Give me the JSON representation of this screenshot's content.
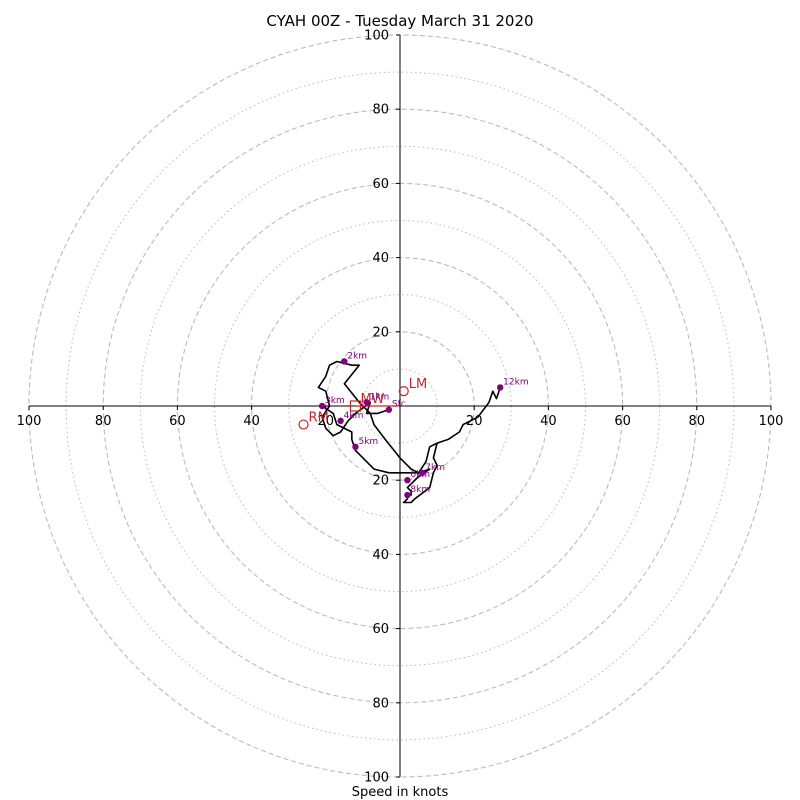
{
  "chart_data": {
    "type": "line",
    "title": "CYAH 00Z - Tuesday March 31 2020",
    "xlabel": "Speed in knots",
    "ylabel": "",
    "xlim": [
      -100,
      100
    ],
    "ylim": [
      -100,
      100
    ],
    "dashed_rings": [
      20,
      40,
      60,
      80,
      100
    ],
    "dotted_rings": [
      10,
      30,
      50,
      70,
      90
    ],
    "x_ticks": [
      {
        "value": -100,
        "label": "100"
      },
      {
        "value": -80,
        "label": "80"
      },
      {
        "value": -60,
        "label": "60"
      },
      {
        "value": -40,
        "label": "40"
      },
      {
        "value": -20,
        "label": "20"
      },
      {
        "value": 20,
        "label": "20"
      },
      {
        "value": 40,
        "label": "40"
      },
      {
        "value": 60,
        "label": "60"
      },
      {
        "value": 80,
        "label": "80"
      },
      {
        "value": 100,
        "label": "100"
      }
    ],
    "y_ticks": [
      {
        "value": 100,
        "label": "100"
      },
      {
        "value": 80,
        "label": "80"
      },
      {
        "value": 60,
        "label": "60"
      },
      {
        "value": 40,
        "label": "40"
      },
      {
        "value": 20,
        "label": "20"
      },
      {
        "value": -20,
        "label": "20"
      },
      {
        "value": -40,
        "label": "40"
      },
      {
        "value": -60,
        "label": "60"
      },
      {
        "value": -80,
        "label": "80"
      },
      {
        "value": -100,
        "label": "100"
      }
    ],
    "series": [
      {
        "color": "#000000",
        "x": [
          -3,
          -6,
          -9,
          -8,
          -12,
          -14,
          -16,
          -18,
          -20,
          -21,
          -19,
          -20,
          -22,
          -20,
          -19,
          -17,
          -13,
          -11,
          -15,
          -11,
          -8,
          -7,
          -4,
          0,
          3,
          5,
          7,
          8,
          10,
          13,
          16,
          17,
          19,
          21,
          24,
          25,
          26,
          27
        ],
        "y": [
          -1,
          -2,
          -2,
          1,
          -2,
          -4,
          -7,
          -8,
          -6,
          -3,
          0,
          4,
          5,
          8,
          11,
          12,
          11,
          11,
          6,
          1,
          -2,
          -5,
          -9,
          -14,
          -17,
          -18,
          -15,
          -11,
          -10,
          -9,
          -7,
          -5,
          -4,
          -3,
          1,
          4,
          2,
          5
        ]
      },
      {
        "color": "#000000",
        "x": [
          -21,
          -18,
          -17,
          -13,
          -13,
          -12,
          -11,
          -7,
          -3,
          0,
          5,
          8,
          5,
          3,
          2,
          3,
          3,
          2,
          2,
          1,
          3,
          4,
          8,
          9,
          10,
          9,
          10
        ],
        "y": [
          0,
          -2,
          -5,
          -7,
          -9,
          -12,
          -13,
          -17,
          -18,
          -18,
          -18,
          -17,
          -19,
          -21,
          -22,
          -23,
          -24,
          -24,
          -25,
          -26,
          -26,
          -25,
          -22,
          -18,
          -16,
          -14,
          -10
        ]
      }
    ],
    "height_markers": [
      {
        "label": "Sfc",
        "x": -3,
        "y": -1
      },
      {
        "label": "1km",
        "x": -9,
        "y": 1
      },
      {
        "label": "2km",
        "x": -15,
        "y": 12
      },
      {
        "label": "3km",
        "x": -21,
        "y": 0
      },
      {
        "label": "4km",
        "x": -16,
        "y": -4
      },
      {
        "label": "5km",
        "x": -12,
        "y": -11
      },
      {
        "label": "7km",
        "x": 6,
        "y": -18
      },
      {
        "label": "6km",
        "x": 2,
        "y": -20
      },
      {
        "label": "8km",
        "x": 2,
        "y": -24
      },
      {
        "label": "12km",
        "x": 27,
        "y": 5
      }
    ],
    "storm_motion": [
      {
        "label": "LM",
        "x": 1,
        "y": 4,
        "marker": "circle"
      },
      {
        "label": "RM",
        "x": -26,
        "y": -5,
        "marker": "circle"
      },
      {
        "label": "MW",
        "x": -12,
        "y": 0,
        "marker": "square"
      }
    ],
    "colors": {
      "marker": "#800080",
      "storm": "#c0272d",
      "grid": "#bbbbbb",
      "hodograph": "#000000"
    }
  }
}
